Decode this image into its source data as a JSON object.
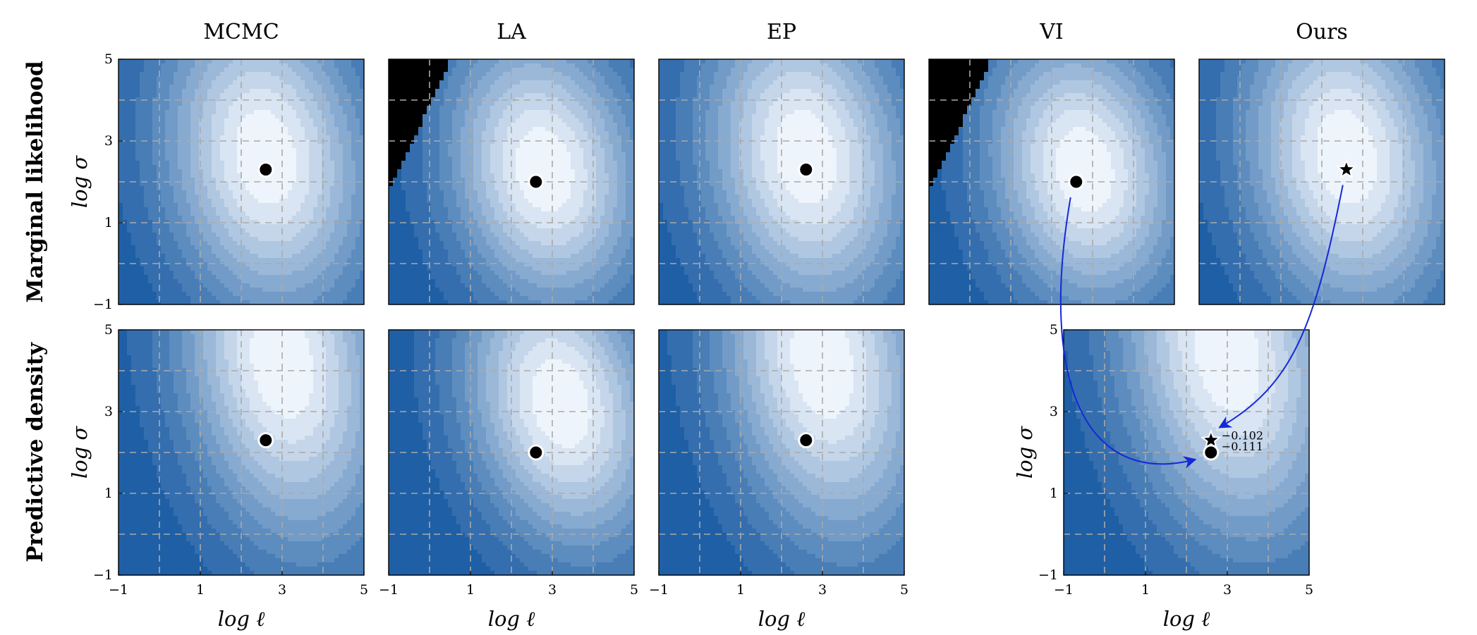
{
  "figure": {
    "columns": [
      "MCMC",
      "LA",
      "EP",
      "VI",
      "Ours"
    ],
    "rows": [
      "Marginal likelihood",
      "Predictive density"
    ],
    "xlabel": "log ℓ",
    "ylabel": "log σ"
  },
  "colors": {
    "contour_dark": "#1f5fa5",
    "contour_light": "#eef4fb",
    "overflow_black": "#000000",
    "grid": "#aaaaaa",
    "arrow": "#1528d8"
  },
  "chart_data": [
    {
      "type": "heatmap",
      "panel": "MCMC marginal likelihood",
      "column": "MCMC",
      "row": "Marginal likelihood",
      "xlim": [
        -1,
        5
      ],
      "ylim": [
        -1,
        5
      ],
      "xticks": [
        "−1",
        "1",
        "3",
        "5"
      ],
      "yticks": [
        "−1",
        "1",
        "3",
        "5"
      ],
      "grid": true,
      "marker": {
        "shape": "circle",
        "x": 2.6,
        "y": 2.3
      },
      "peak": {
        "x": 2.6,
        "y": 2.6
      },
      "spread": {
        "x": 1.7,
        "y": 2.6
      }
    },
    {
      "type": "heatmap",
      "panel": "LA marginal likelihood",
      "column": "LA",
      "row": "Marginal likelihood",
      "xlim": [
        -1,
        5
      ],
      "ylim": [
        -1,
        5
      ],
      "xticks": [
        "−1",
        "1",
        "3",
        "5"
      ],
      "yticks": [
        "−1",
        "1",
        "3",
        "5"
      ],
      "grid": true,
      "marker": {
        "shape": "circle",
        "x": 2.6,
        "y": 2.0
      },
      "peak": {
        "x": 2.8,
        "y": 2.3
      },
      "spread": {
        "x": 1.6,
        "y": 2.3
      },
      "black_region": true
    },
    {
      "type": "heatmap",
      "panel": "EP marginal likelihood",
      "column": "EP",
      "row": "Marginal likelihood",
      "xlim": [
        -1,
        5
      ],
      "ylim": [
        -1,
        5
      ],
      "xticks": [
        "−1",
        "1",
        "3",
        "5"
      ],
      "yticks": [
        "−1",
        "1",
        "3",
        "5"
      ],
      "grid": true,
      "marker": {
        "shape": "circle",
        "x": 2.6,
        "y": 2.3
      },
      "peak": {
        "x": 2.6,
        "y": 2.6
      },
      "spread": {
        "x": 1.7,
        "y": 2.6
      }
    },
    {
      "type": "heatmap",
      "panel": "VI marginal likelihood",
      "column": "VI",
      "row": "Marginal likelihood",
      "xlim": [
        -1,
        5
      ],
      "ylim": [
        -1,
        5
      ],
      "xticks": [
        "−1",
        "1",
        "3",
        "5"
      ],
      "yticks": [
        "−1",
        "1",
        "3",
        "5"
      ],
      "grid": true,
      "marker": {
        "shape": "circle",
        "x": 2.6,
        "y": 2.0
      },
      "peak": {
        "x": 2.8,
        "y": 2.3
      },
      "spread": {
        "x": 1.6,
        "y": 2.3
      },
      "black_region": true
    },
    {
      "type": "heatmap",
      "panel": "Ours marginal likelihood",
      "column": "Ours",
      "row": "Marginal likelihood",
      "xlim": [
        -1,
        5
      ],
      "ylim": [
        -1,
        5
      ],
      "xticks": [
        "−1",
        "1",
        "3",
        "5"
      ],
      "yticks": [
        "−1",
        "1",
        "3",
        "5"
      ],
      "grid": true,
      "marker": {
        "shape": "star",
        "x": 2.6,
        "y": 2.3
      },
      "peak": {
        "x": 2.6,
        "y": 2.6
      },
      "spread": {
        "x": 1.7,
        "y": 2.6
      }
    },
    {
      "type": "heatmap",
      "panel": "MCMC predictive density",
      "column": "MCMC",
      "row": "Predictive density",
      "xlim": [
        -1,
        5
      ],
      "ylim": [
        -1,
        5
      ],
      "xticks": [
        "−1",
        "1",
        "3",
        "5"
      ],
      "yticks": [
        "−1",
        "1",
        "3",
        "5"
      ],
      "grid": true,
      "marker": {
        "shape": "circle",
        "x": 2.6,
        "y": 2.3
      },
      "peak": {
        "x": 3.0,
        "y": 4.2
      },
      "spread": {
        "x": 1.7,
        "y": 3.0
      }
    },
    {
      "type": "heatmap",
      "panel": "LA predictive density",
      "column": "LA",
      "row": "Predictive density",
      "xlim": [
        -1,
        5
      ],
      "ylim": [
        -1,
        5
      ],
      "xticks": [
        "−1",
        "1",
        "3",
        "5"
      ],
      "yticks": [
        "−1",
        "1",
        "3",
        "5"
      ],
      "grid": true,
      "marker": {
        "shape": "circle",
        "x": 2.6,
        "y": 2.0
      },
      "peak": {
        "x": 3.2,
        "y": 3.2
      },
      "spread": {
        "x": 1.6,
        "y": 2.4
      }
    },
    {
      "type": "heatmap",
      "panel": "EP predictive density",
      "column": "EP",
      "row": "Predictive density",
      "xlim": [
        -1,
        5
      ],
      "ylim": [
        -1,
        5
      ],
      "xticks": [
        "−1",
        "1",
        "3",
        "5"
      ],
      "yticks": [
        "−1",
        "1",
        "3",
        "5"
      ],
      "grid": true,
      "marker": {
        "shape": "circle",
        "x": 2.6,
        "y": 2.3
      },
      "peak": {
        "x": 3.0,
        "y": 4.2
      },
      "spread": {
        "x": 1.7,
        "y": 3.0
      }
    },
    {
      "type": "heatmap",
      "panel": "VI and Ours predictive density",
      "column": "VI",
      "row": "Predictive density",
      "xlim": [
        -1,
        5
      ],
      "ylim": [
        -1,
        5
      ],
      "xticks": [
        "−1",
        "1",
        "3",
        "5"
      ],
      "yticks": [
        "−1",
        "1",
        "3",
        "5"
      ],
      "grid": true,
      "peak": {
        "x": 3.0,
        "y": 4.4
      },
      "spread": {
        "x": 1.8,
        "y": 3.1
      },
      "markers": [
        {
          "shape": "star",
          "x": 2.6,
          "y": 2.3,
          "label": "−0.102"
        },
        {
          "shape": "circle",
          "x": 2.6,
          "y": 2.0,
          "label": "−0.111"
        }
      ]
    }
  ]
}
